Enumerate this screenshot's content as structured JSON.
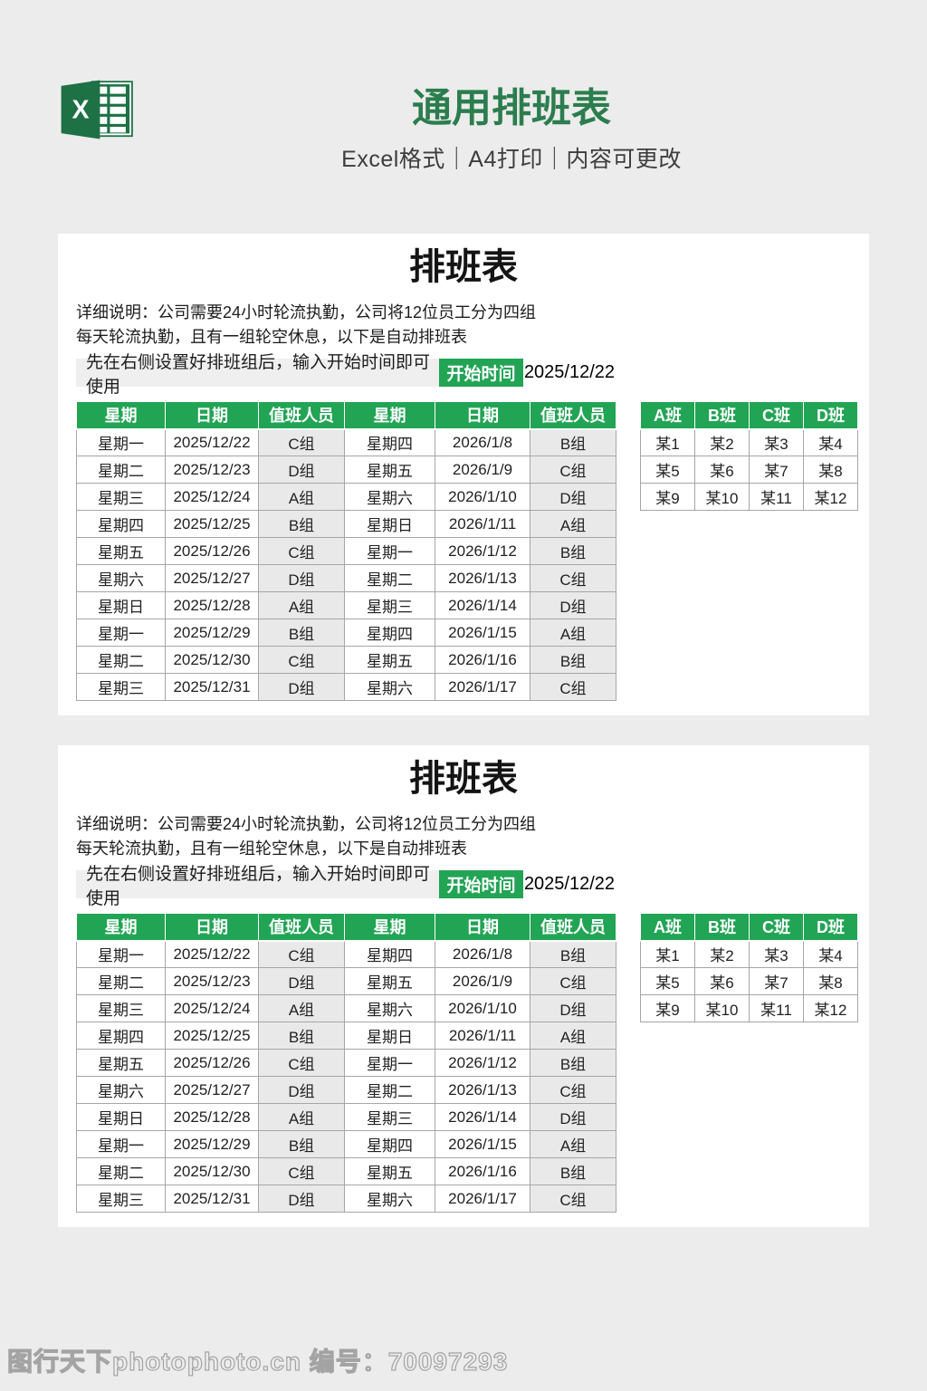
{
  "header": {
    "title": "通用排班表",
    "subtitle": "Excel格式｜A4打印｜内容可更改",
    "excel_icon_letter": "X"
  },
  "card": {
    "title": "排班表",
    "description_line1": "详细说明：公司需要24小时轮流执勤，公司将12位员工分为四组",
    "description_line2": "每天轮流执勤，且有一组轮空休息，以下是自动排班表",
    "instruction": "先在右侧设置好排班组后，输入开始时间即可使用",
    "start_time_label": "开始时间",
    "start_date": "2025/12/22",
    "main_table": {
      "headers": [
        "星期",
        "日期",
        "值班人员",
        "星期",
        "日期",
        "值班人员"
      ],
      "rows": [
        [
          "星期一",
          "2025/12/22",
          "C组",
          "星期四",
          "2026/1/8",
          "B组"
        ],
        [
          "星期二",
          "2025/12/23",
          "D组",
          "星期五",
          "2026/1/9",
          "C组"
        ],
        [
          "星期三",
          "2025/12/24",
          "A组",
          "星期六",
          "2026/1/10",
          "D组"
        ],
        [
          "星期四",
          "2025/12/25",
          "B组",
          "星期日",
          "2026/1/11",
          "A组"
        ],
        [
          "星期五",
          "2025/12/26",
          "C组",
          "星期一",
          "2026/1/12",
          "B组"
        ],
        [
          "星期六",
          "2025/12/27",
          "D组",
          "星期二",
          "2026/1/13",
          "C组"
        ],
        [
          "星期日",
          "2025/12/28",
          "A组",
          "星期三",
          "2026/1/14",
          "D组"
        ],
        [
          "星期一",
          "2025/12/29",
          "B组",
          "星期四",
          "2026/1/15",
          "A组"
        ],
        [
          "星期二",
          "2025/12/30",
          "C组",
          "星期五",
          "2026/1/16",
          "B组"
        ],
        [
          "星期三",
          "2025/12/31",
          "D组",
          "星期六",
          "2026/1/17",
          "C组"
        ]
      ]
    },
    "groups_table": {
      "headers": [
        "A班",
        "B班",
        "C班",
        "D班"
      ],
      "rows": [
        [
          "某1",
          "某2",
          "某3",
          "某4"
        ],
        [
          "某5",
          "某6",
          "某7",
          "某8"
        ],
        [
          "某9",
          "某10",
          "某11",
          "某12"
        ]
      ]
    }
  },
  "colors": {
    "accent_green": "#22a455",
    "excel_dark_green": "#1e7145",
    "title_green": "#2c7d4e",
    "page_background": "#ececec",
    "shaded_cell": "#e9e9e9"
  },
  "watermark": {
    "text": "图行天下photophoto.cn 编号：70097293"
  }
}
